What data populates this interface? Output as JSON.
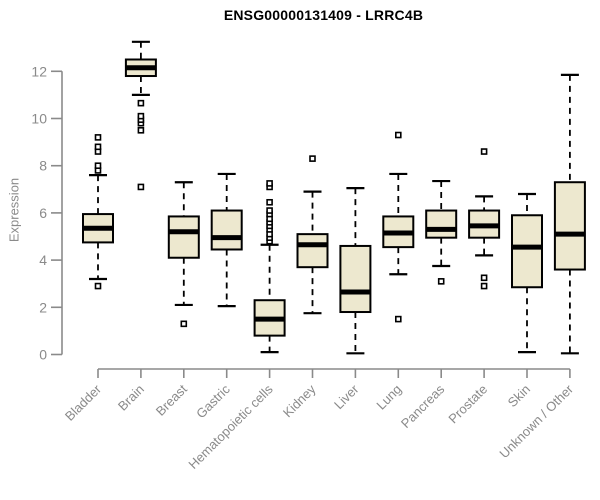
{
  "title": "ENSG00000131409 - LRRC4B",
  "chart_data": {
    "type": "boxplot",
    "title": "ENSG00000131409 - LRRC4B",
    "xlabel": "",
    "ylabel": "Expression",
    "ylim": [
      0,
      13.4
    ],
    "yticks": [
      0,
      2,
      4,
      6,
      8,
      10,
      12
    ],
    "grid": false,
    "legend": "none",
    "colors": {
      "box_fill": "#ede8cf",
      "box_stroke": "#000000",
      "median": "#000000",
      "whisker": "#000000",
      "outlier_fill": "#ffffff",
      "axis": "#8a8a8a",
      "tick_text": "#8a8a8a",
      "title_text": "#000000"
    },
    "categories": [
      "Bladder",
      "Brain",
      "Breast",
      "Gastric",
      "Hematopoietic cells",
      "Kidney",
      "Liver",
      "Lung",
      "Pancreas",
      "Prostate",
      "Skin",
      "Unknown / Other"
    ],
    "boxes": [
      {
        "category": "Bladder",
        "low": 3.2,
        "q1": 4.75,
        "median": 5.35,
        "q3": 5.95,
        "high": 7.6,
        "outliers": [
          2.9,
          7.8,
          8.0,
          8.6,
          8.8,
          9.2
        ]
      },
      {
        "category": "Brain",
        "low": 11.0,
        "q1": 11.8,
        "median": 12.15,
        "q3": 12.5,
        "high": 13.25,
        "outliers": [
          7.1,
          9.5,
          9.8,
          9.95,
          10.1,
          10.65
        ]
      },
      {
        "category": "Breast",
        "low": 2.1,
        "q1": 4.1,
        "median": 5.2,
        "q3": 5.85,
        "high": 7.3,
        "outliers": [
          1.3
        ]
      },
      {
        "category": "Gastric",
        "low": 2.05,
        "q1": 4.45,
        "median": 4.95,
        "q3": 6.1,
        "high": 7.65,
        "outliers": []
      },
      {
        "category": "Hematopoietic cells",
        "low": 0.1,
        "q1": 0.8,
        "median": 1.5,
        "q3": 2.3,
        "high": 4.65,
        "outliers": [
          4.8,
          4.95,
          5.1,
          5.3,
          5.45,
          5.6,
          5.75,
          5.95,
          6.1,
          6.45,
          7.1,
          7.25
        ]
      },
      {
        "category": "Kidney",
        "low": 1.75,
        "q1": 3.7,
        "median": 4.65,
        "q3": 5.1,
        "high": 6.9,
        "outliers": [
          8.3
        ]
      },
      {
        "category": "Liver",
        "low": 0.05,
        "q1": 1.8,
        "median": 2.65,
        "q3": 4.6,
        "high": 7.05,
        "outliers": []
      },
      {
        "category": "Lung",
        "low": 3.4,
        "q1": 4.55,
        "median": 5.15,
        "q3": 5.85,
        "high": 7.65,
        "outliers": [
          1.5,
          9.3
        ]
      },
      {
        "category": "Pancreas",
        "low": 3.75,
        "q1": 4.95,
        "median": 5.3,
        "q3": 6.1,
        "high": 7.35,
        "outliers": [
          3.1
        ]
      },
      {
        "category": "Prostate",
        "low": 4.2,
        "q1": 4.95,
        "median": 5.45,
        "q3": 6.1,
        "high": 6.7,
        "outliers": [
          2.9,
          3.25,
          8.6
        ]
      },
      {
        "category": "Skin",
        "low": 0.1,
        "q1": 2.85,
        "median": 4.55,
        "q3": 5.9,
        "high": 6.8,
        "outliers": []
      },
      {
        "category": "Unknown / Other",
        "low": 0.05,
        "q1": 3.6,
        "median": 5.1,
        "q3": 7.3,
        "high": 11.85,
        "outliers": []
      }
    ]
  }
}
